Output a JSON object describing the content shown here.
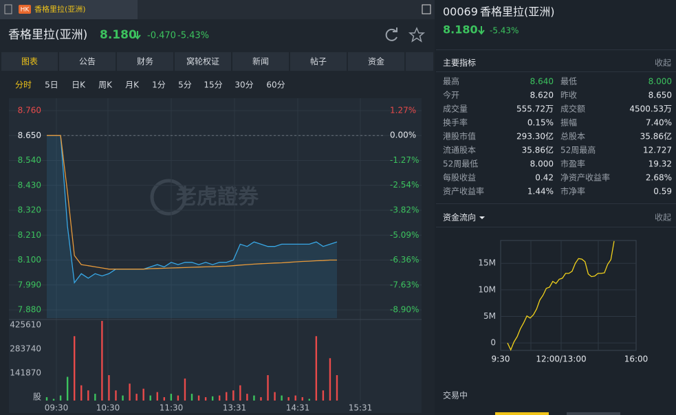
{
  "window_tab": {
    "badge": "HK",
    "title": "香格里拉(亚洲)"
  },
  "quote": {
    "name": "香格里拉(亚洲)",
    "price": "8.180",
    "change": "-0.470",
    "change_pct": "-5.43%"
  },
  "nav_tabs": [
    "图表",
    "公告",
    "财务",
    "窝轮权证",
    "新闻",
    "帖子",
    "资金"
  ],
  "periods": [
    "分时",
    "5日",
    "日K",
    "周K",
    "月K",
    "1分",
    "5分",
    "15分",
    "30分",
    "60分"
  ],
  "watermark": "老虎證券",
  "chart_data": [
    {
      "type": "line",
      "x_labels": [
        "09:30",
        "10:30",
        "11:30",
        "13:31",
        "14:31",
        "15:31"
      ],
      "ylim": [
        7.88,
        8.76
      ],
      "yticks": [
        {
          "value": 8.76,
          "label": "8.760"
        },
        {
          "value": 8.65,
          "label": "8.650"
        },
        {
          "value": 8.54,
          "label": "8.540"
        },
        {
          "value": 8.43,
          "label": "8.430"
        },
        {
          "value": 8.32,
          "label": "8.320"
        },
        {
          "value": 8.21,
          "label": "8.210"
        },
        {
          "value": 8.1,
          "label": "8.100"
        },
        {
          "value": 7.99,
          "label": "7.990"
        },
        {
          "value": 7.88,
          "label": "7.880"
        }
      ],
      "y2lim": [
        -8.9,
        1.27
      ],
      "y2ticks": [
        {
          "value": 1.27,
          "label": "1.27%"
        },
        {
          "value": 0,
          "label": "0.00%"
        },
        {
          "value": -1.27,
          "label": "-1.27%"
        },
        {
          "value": -2.54,
          "label": "-2.54%"
        },
        {
          "value": -3.82,
          "label": "-3.82%"
        },
        {
          "value": -5.09,
          "label": "-5.09%"
        },
        {
          "value": -6.36,
          "label": "-6.36%"
        },
        {
          "value": -7.63,
          "label": "-7.63%"
        },
        {
          "value": -8.9,
          "label": "-8.90%"
        }
      ],
      "baseline": 8.65,
      "series": [
        {
          "color": "#38a8e6",
          "values": [
            8.65,
            8.65,
            8.65,
            8.25,
            8.0,
            8.04,
            8.02,
            8.04,
            8.03,
            8.04,
            8.06,
            8.06,
            8.06,
            8.06,
            8.06,
            8.07,
            8.08,
            8.07,
            8.09,
            8.08,
            8.09,
            8.09,
            8.08,
            8.09,
            8.08,
            8.09,
            8.09,
            8.1,
            8.17,
            8.16,
            8.18,
            8.17,
            8.16,
            8.16,
            8.17,
            8.17,
            8.17,
            8.17,
            8.17,
            8.18,
            8.16,
            8.17,
            8.18
          ]
        },
        {
          "color": "#e89a3a",
          "values": [
            8.65,
            8.65,
            8.65,
            8.4,
            8.12,
            8.08,
            8.075,
            8.07,
            8.065,
            8.06,
            8.06,
            8.06,
            8.06,
            8.06,
            8.06,
            8.062,
            8.063,
            8.064,
            8.065,
            8.066,
            8.067,
            8.068,
            8.069,
            8.07,
            8.071,
            8.072,
            8.073,
            8.075,
            8.078,
            8.08,
            8.082,
            8.084,
            8.085,
            8.087,
            8.088,
            8.09,
            8.092,
            8.094,
            8.095,
            8.097,
            8.098,
            8.1,
            8.1
          ]
        }
      ]
    },
    {
      "type": "bar",
      "ylim": [
        0,
        480000
      ],
      "yticks": [
        {
          "value": 0,
          "label": "股"
        },
        141870,
        283740,
        425610
      ],
      "values": [
        20000,
        10000,
        30000,
        140000,
        380000,
        90000,
        60000,
        40000,
        470000,
        150000,
        60000,
        30000,
        100000,
        40000,
        70000,
        30000,
        50000,
        20000,
        40000,
        30000,
        130000,
        40000,
        30000,
        20000,
        25000,
        30000,
        50000,
        60000,
        90000,
        40000,
        30000,
        20000,
        150000,
        50000,
        30000,
        20000,
        30000,
        20000,
        10000,
        380000,
        60000,
        250000,
        150000
      ],
      "colors": [
        "#3cc35e",
        "#3cc35e",
        "#3cc35e",
        "#3cc35e",
        "#e84a4a",
        "#e84a4a",
        "#e84a4a",
        "#3cc35e",
        "#e84a4a",
        "#e84a4a",
        "#e84a4a",
        "#3cc35e",
        "#e84a4a",
        "#e84a4a",
        "#e84a4a",
        "#3cc35e",
        "#e84a4a",
        "#e84a4a",
        "#3cc35e",
        "#e84a4a",
        "#e84a4a",
        "#3cc35e",
        "#e84a4a",
        "#e84a4a",
        "#3cc35e",
        "#e84a4a",
        "#e84a4a",
        "#e84a4a",
        "#e84a4a",
        "#e84a4a",
        "#3cc35e",
        "#e84a4a",
        "#e84a4a",
        "#e84a4a",
        "#3cc35e",
        "#e84a4a",
        "#e84a4a",
        "#e84a4a",
        "#3cc35e",
        "#e84a4a",
        "#e84a4a",
        "#e84a4a",
        "#e84a4a"
      ]
    },
    {
      "type": "line",
      "title": "资金流向",
      "x_labels": [
        "9:30",
        "12:00/13:00",
        "16:00"
      ],
      "ylim": [
        -1400000,
        19300000
      ],
      "yticks": [
        0,
        {
          "value": 5000000,
          "label": "5M"
        },
        {
          "value": 10000000,
          "label": "10M"
        },
        {
          "value": 15000000,
          "label": "15M"
        }
      ],
      "series": [
        {
          "color": "#f2d21b",
          "values": [
            0,
            -1300000,
            200000,
            1200000,
            2700000,
            3800000,
            5100000,
            4700000,
            5300000,
            6400000,
            8100000,
            9000000,
            10300000,
            10500000,
            11600000,
            11200000,
            12000000,
            12200000,
            13100000,
            13100000,
            13500000,
            15000000,
            15900000,
            15800000,
            15300000,
            13000000,
            12500000,
            12600000,
            13100000,
            13100000,
            13200000,
            14800000,
            15700000,
            19200000
          ]
        }
      ]
    }
  ],
  "sidebar": {
    "code": "00069",
    "name": "香格里拉(亚洲)",
    "price": "8.180",
    "change_pct": "-5.43%",
    "indicators_title": "主要指标",
    "collapse": "收起",
    "stats": [
      [
        "最高",
        "8.640",
        "最低",
        "8.000"
      ],
      [
        "今开",
        "8.620",
        "昨收",
        "8.650"
      ],
      [
        "成交量",
        "555.72万",
        "成交额",
        "4500.53万"
      ],
      [
        "换手率",
        "0.15%",
        "振幅",
        "7.40%"
      ],
      [
        "港股市值",
        "293.30亿",
        "总股本",
        "35.86亿"
      ],
      [
        "流通股本",
        "35.86亿",
        "52周最高",
        "12.727"
      ],
      [
        "52周最低",
        "8.000",
        "市盈率",
        "19.32"
      ],
      [
        "每股收益",
        "0.42",
        "净资产收益率",
        "2.68%"
      ],
      [
        "资产收益率",
        "1.44%",
        "市净率",
        "0.59"
      ]
    ],
    "flow_collapse": "收起",
    "status": "交易中"
  }
}
